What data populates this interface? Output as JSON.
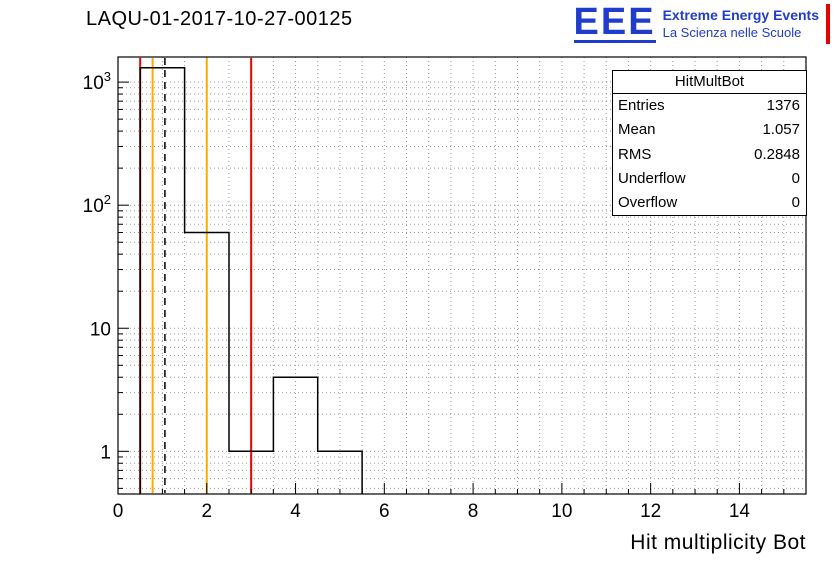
{
  "chart_data": {
    "type": "bar",
    "title": "LAQU-01-2017-10-27-00125",
    "xlabel": "Hit multiplicity Bot",
    "ylabel": "",
    "x_range": [
      0,
      15.5
    ],
    "y_range": [
      0.45,
      1600
    ],
    "y_scale": "log",
    "grid": true,
    "x_ticks": [
      0,
      2,
      4,
      6,
      8,
      10,
      12,
      14
    ],
    "y_ticks": [
      1,
      10,
      100,
      1000
    ],
    "histogram_name": "HitMultBot",
    "bins": [
      {
        "low": 0.5,
        "high": 1.5,
        "count": 1310
      },
      {
        "low": 1.5,
        "high": 2.5,
        "count": 60
      },
      {
        "low": 2.5,
        "high": 3.5,
        "count": 1
      },
      {
        "low": 3.5,
        "high": 4.5,
        "count": 4
      },
      {
        "low": 4.5,
        "high": 5.5,
        "count": 1
      }
    ],
    "histogram_color": "#000000",
    "grid_color": "#999999",
    "marker_lines": [
      {
        "x": 0.5,
        "color": "#ee0000",
        "style": "solid"
      },
      {
        "x": 0.78,
        "color": "#ffaa00",
        "style": "solid"
      },
      {
        "x": 1.057,
        "color": "#000000",
        "style": "dashed"
      },
      {
        "x": 2.0,
        "color": "#ffaa00",
        "style": "solid"
      },
      {
        "x": 3.0,
        "color": "#ee0000",
        "style": "solid"
      }
    ]
  },
  "stats": {
    "title": "HitMultBot",
    "rows": [
      {
        "label": "Entries",
        "value": "1376"
      },
      {
        "label": "Mean",
        "value": "1.057"
      },
      {
        "label": "RMS",
        "value": "0.2848"
      },
      {
        "label": "Underflow",
        "value": "0"
      },
      {
        "label": "Overflow",
        "value": "0"
      }
    ]
  },
  "logo": {
    "acronym": "EEE",
    "line1": "Extreme Energy Events",
    "line2": "La Scienza nelle Scuole",
    "blue": "#1f3ccc",
    "red": "#e60000"
  }
}
